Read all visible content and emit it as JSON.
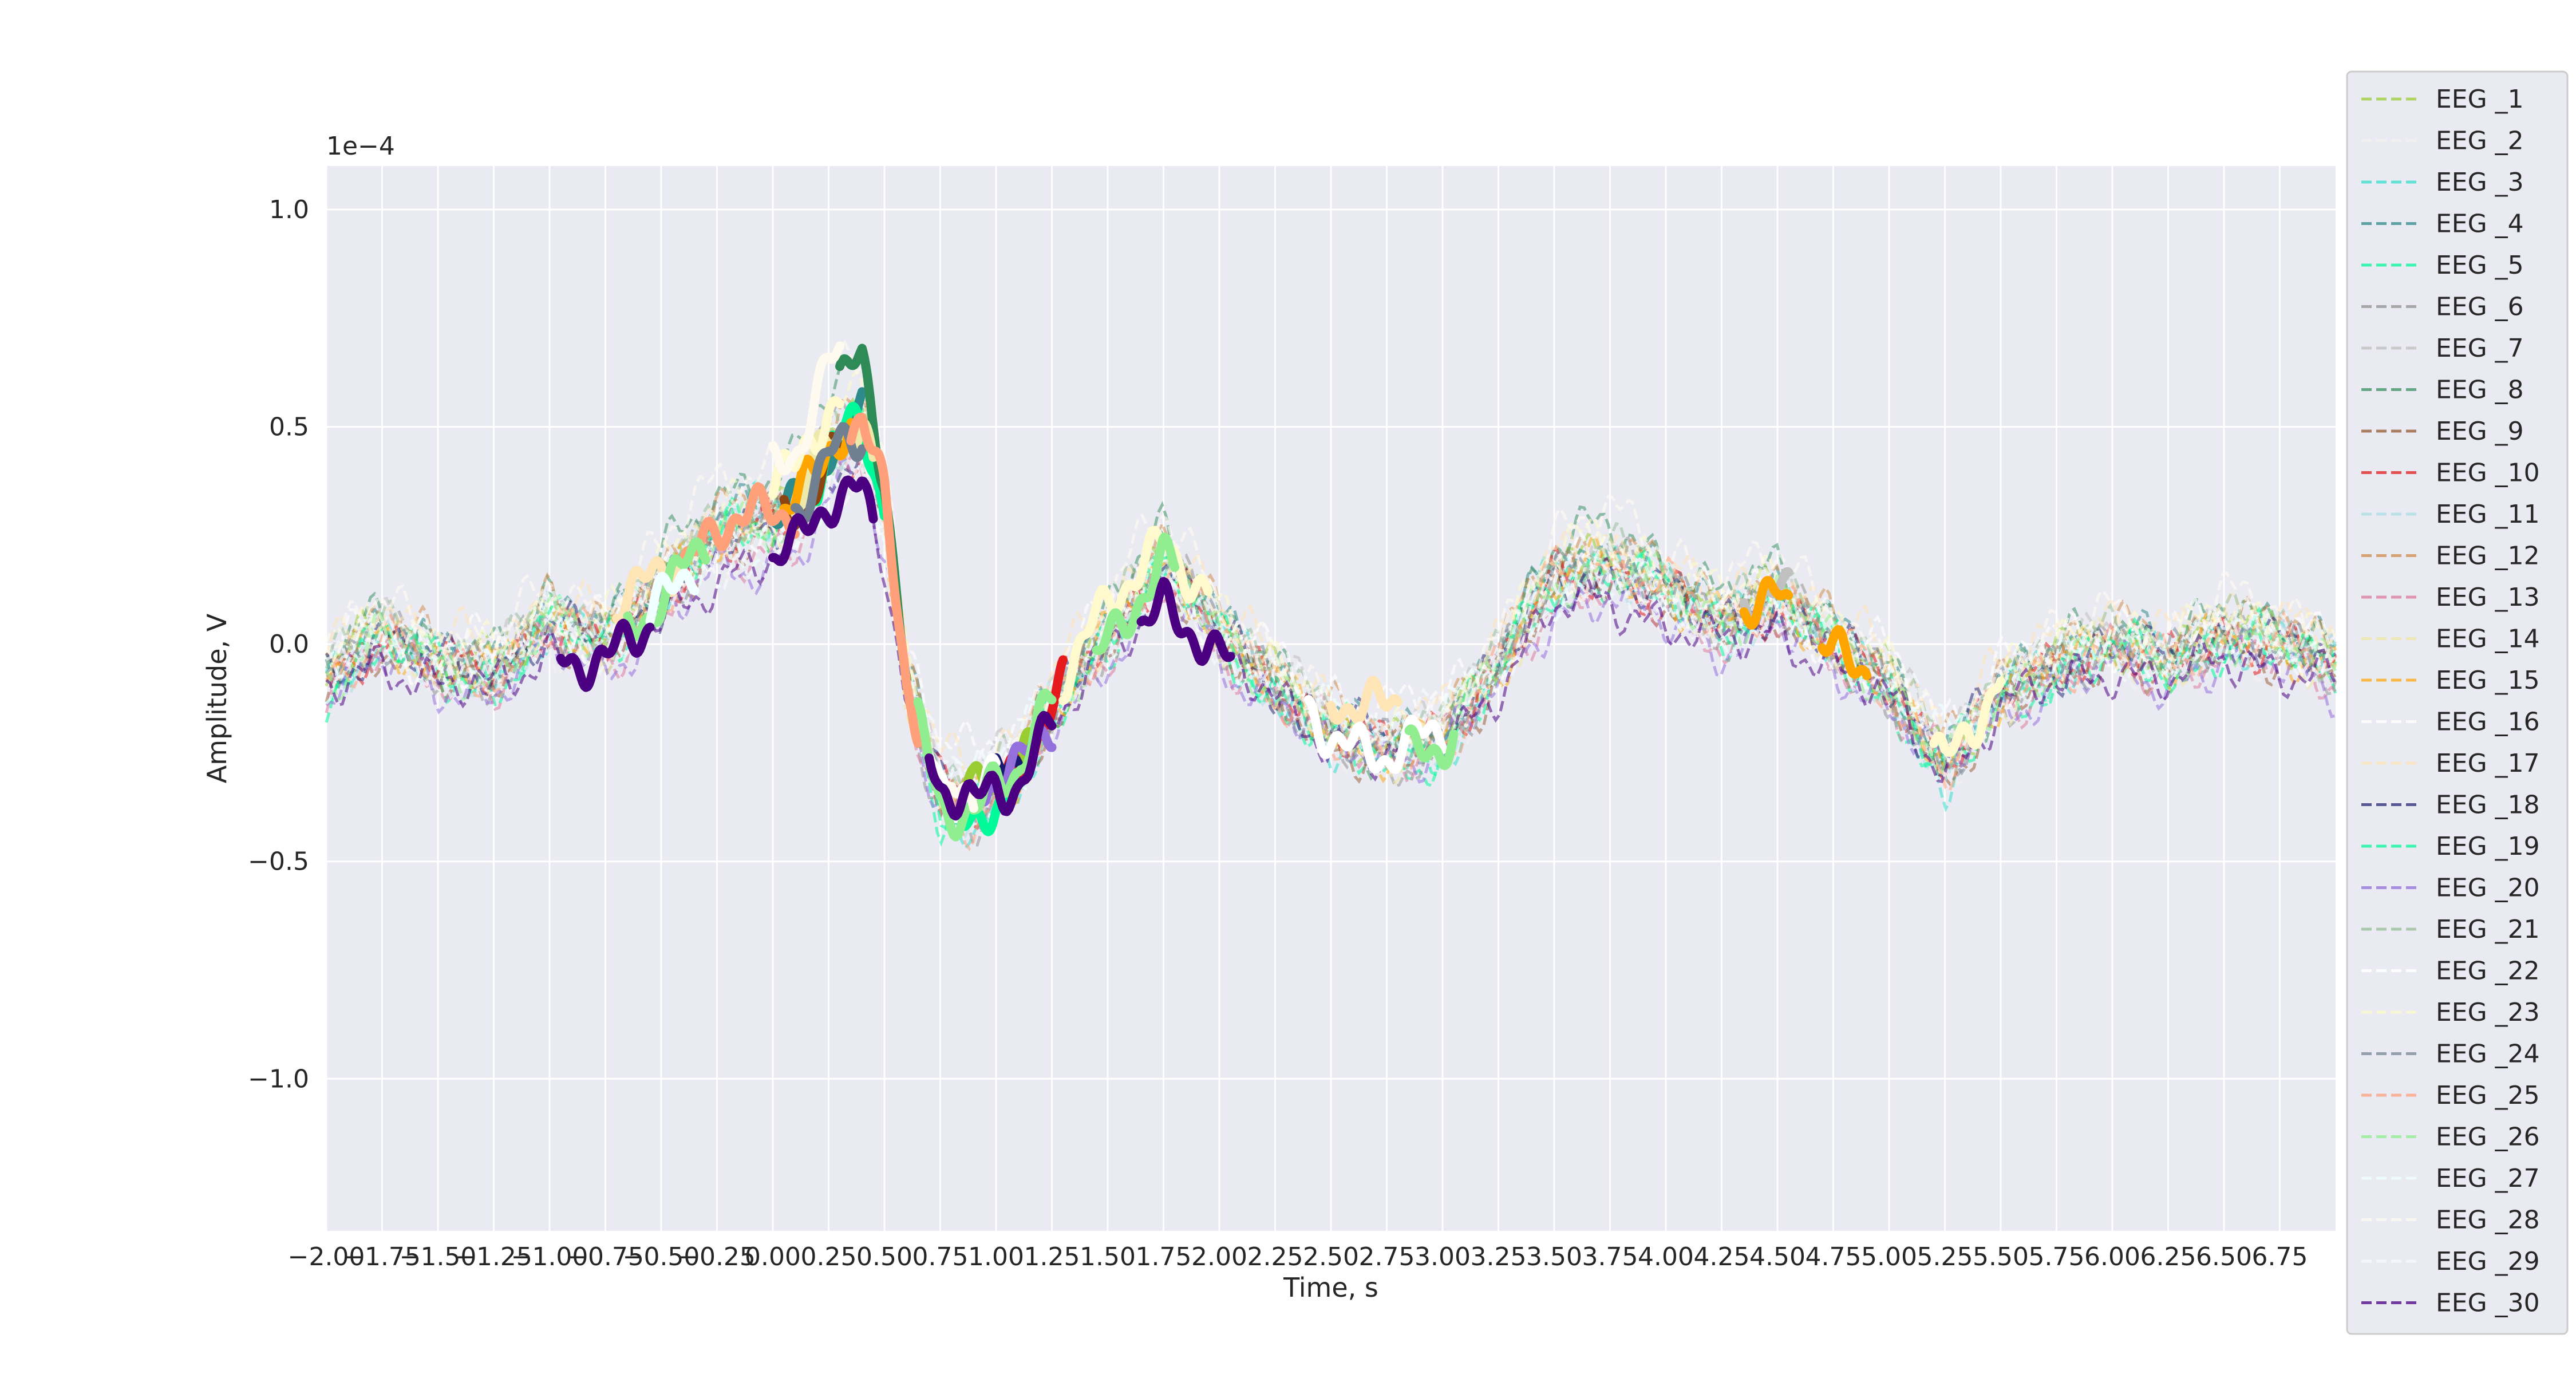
{
  "chart_data": {
    "type": "line",
    "title": "",
    "xlabel": "Time, s",
    "ylabel": "Amplitude, V",
    "y_scale_label": "1e−4",
    "xlim": [
      -2.0,
      7.0
    ],
    "ylim": [
      -1.35,
      1.1
    ],
    "x_ticks": [
      -2.0,
      -1.75,
      -1.5,
      -1.25,
      -1.0,
      -0.75,
      -0.5,
      -0.25,
      0.0,
      0.25,
      0.5,
      0.75,
      1.0,
      1.25,
      1.5,
      1.75,
      2.0,
      2.25,
      2.5,
      2.75,
      3.0,
      3.25,
      3.5,
      3.75,
      4.0,
      4.25,
      4.5,
      4.75,
      5.0,
      5.25,
      5.5,
      5.75,
      6.0,
      6.25,
      6.5,
      6.75
    ],
    "x_tick_labels": [
      "−2.00",
      "−1.75",
      "−1.50",
      "−1.25",
      "−1.00",
      "−0.75",
      "−0.50",
      "−0.25",
      "0.00",
      "0.25",
      "0.50",
      "0.75",
      "1.00",
      "1.25",
      "1.50",
      "1.75",
      "2.00",
      "2.25",
      "2.50",
      "2.75",
      "3.00",
      "3.25",
      "3.50",
      "3.75",
      "4.00",
      "4.25",
      "4.50",
      "4.75",
      "5.00",
      "5.25",
      "5.50",
      "5.75",
      "6.00",
      "6.25",
      "6.50",
      "6.75"
    ],
    "y_ticks": [
      1.0,
      0.5,
      0.0,
      -0.5,
      -1.0
    ],
    "y_tick_labels": [
      "1.0",
      "0.5",
      "0.0",
      "−0.5",
      "−1.0"
    ],
    "grid": true,
    "background": "#eaeaf2",
    "legend_position": "outside right",
    "base_waveform": {
      "x": [
        -2.0,
        -1.75,
        -1.5,
        -1.25,
        -1.0,
        -0.75,
        -0.5,
        -0.25,
        0.0,
        0.1,
        0.25,
        0.4,
        0.5,
        0.6,
        0.75,
        0.9,
        1.0,
        1.1,
        1.25,
        1.5,
        1.65,
        1.75,
        1.9,
        2.0,
        2.25,
        2.5,
        2.75,
        3.0,
        3.25,
        3.5,
        3.75,
        4.0,
        4.25,
        4.5,
        4.75,
        5.0,
        5.25,
        5.5,
        5.75,
        6.0,
        6.25,
        6.5,
        6.75,
        7.0
      ],
      "y": [
        -0.08,
        0.02,
        -0.05,
        -0.07,
        0.05,
        0.0,
        0.12,
        0.25,
        0.28,
        0.3,
        0.45,
        0.5,
        0.3,
        -0.1,
        -0.35,
        -0.38,
        -0.32,
        -0.3,
        -0.15,
        0.02,
        0.12,
        0.18,
        0.1,
        0.02,
        -0.1,
        -0.2,
        -0.25,
        -0.22,
        -0.05,
        0.15,
        0.18,
        0.12,
        0.05,
        0.1,
        0.0,
        -0.1,
        -0.28,
        -0.12,
        -0.05,
        0.0,
        -0.05,
        0.02,
        0.0,
        -0.05
      ]
    },
    "series": [
      {
        "name": "EEG _1",
        "color": "#9acd32",
        "amp": 1.0,
        "offset": 0.02,
        "opacity": 0.55,
        "highlight": [
          [
            0.85,
            1.15
          ]
        ]
      },
      {
        "name": "EEG _2",
        "color": "#f0f0f0",
        "amp": 0.9,
        "offset": -0.03,
        "opacity": 0.8,
        "highlight": []
      },
      {
        "name": "EEG _3",
        "color": "#40e0d0",
        "amp": 1.1,
        "offset": 0.0,
        "opacity": 0.6,
        "highlight": []
      },
      {
        "name": "EEG _4",
        "color": "#2e8b8b",
        "amp": 1.0,
        "offset": 0.03,
        "opacity": 0.55,
        "highlight": [
          [
            0.0,
            0.4
          ]
        ]
      },
      {
        "name": "EEG _5",
        "color": "#00fa9a",
        "amp": 1.05,
        "offset": -0.02,
        "opacity": 0.55,
        "highlight": [
          [
            0.2,
            0.5
          ],
          [
            0.8,
            1.1
          ]
        ]
      },
      {
        "name": "EEG _6",
        "color": "#8b8b8b",
        "amp": 1.1,
        "offset": 0.0,
        "opacity": 0.5,
        "highlight": []
      },
      {
        "name": "EEG _7",
        "color": "#c0c0c0",
        "amp": 0.9,
        "offset": 0.02,
        "opacity": 0.55,
        "highlight": [
          [
            4.35,
            4.55
          ]
        ]
      },
      {
        "name": "EEG _8",
        "color": "#2e8b57",
        "amp": 1.2,
        "offset": 0.05,
        "opacity": 0.5,
        "highlight": [
          [
            0.3,
            0.6
          ]
        ]
      },
      {
        "name": "EEG _9",
        "color": "#8b4513",
        "amp": 1.0,
        "offset": -0.02,
        "opacity": 0.45,
        "highlight": [
          [
            0.05,
            0.35
          ]
        ]
      },
      {
        "name": "EEG _10",
        "color": "#e41a1c",
        "amp": 0.95,
        "offset": 0.0,
        "opacity": 0.55,
        "highlight": [
          [
            1.0,
            1.3
          ]
        ]
      },
      {
        "name": "EEG _11",
        "color": "#b0e0e6",
        "amp": 1.0,
        "offset": 0.0,
        "opacity": 0.6,
        "highlight": []
      },
      {
        "name": "EEG _12",
        "color": "#cd853f",
        "amp": 1.0,
        "offset": 0.04,
        "opacity": 0.5,
        "highlight": []
      },
      {
        "name": "EEG _13",
        "color": "#db7093",
        "amp": 0.9,
        "offset": -0.03,
        "opacity": 0.5,
        "highlight": []
      },
      {
        "name": "EEG _14",
        "color": "#eee8aa",
        "amp": 1.0,
        "offset": 0.0,
        "opacity": 0.6,
        "highlight": [
          [
            0.1,
            0.45
          ]
        ]
      },
      {
        "name": "EEG _15",
        "color": "#ffa500",
        "amp": 1.0,
        "offset": 0.0,
        "opacity": 0.5,
        "highlight": [
          [
            0.05,
            0.35
          ],
          [
            4.7,
            4.9
          ],
          [
            4.35,
            4.55
          ]
        ]
      },
      {
        "name": "EEG _16",
        "color": "#fdfdfd",
        "amp": 0.8,
        "offset": 0.05,
        "opacity": 0.7,
        "highlight": []
      },
      {
        "name": "EEG _17",
        "color": "#ffe4b5",
        "amp": 0.9,
        "offset": 0.06,
        "opacity": 0.55,
        "highlight": [
          [
            2.5,
            2.8
          ],
          [
            -0.7,
            -0.4
          ]
        ]
      },
      {
        "name": "EEG _18",
        "color": "#191970",
        "amp": 0.9,
        "offset": 0.0,
        "opacity": 0.5,
        "highlight": [
          [
            1.0,
            1.1
          ]
        ]
      },
      {
        "name": "EEG _19",
        "color": "#00fa9a",
        "amp": 1.0,
        "offset": 0.0,
        "opacity": 0.55,
        "highlight": []
      },
      {
        "name": "EEG _20",
        "color": "#9370db",
        "amp": 0.85,
        "offset": -0.05,
        "opacity": 0.55,
        "highlight": [
          [
            0.95,
            1.25
          ]
        ]
      },
      {
        "name": "EEG _21",
        "color": "#8fbc8f",
        "amp": 1.0,
        "offset": 0.03,
        "opacity": 0.5,
        "highlight": []
      },
      {
        "name": "EEG _22",
        "color": "#ffffff",
        "amp": 1.0,
        "offset": 0.0,
        "opacity": 0.7,
        "highlight": [
          [
            2.4,
            3.0
          ],
          [
            0.7,
            1.0
          ]
        ]
      },
      {
        "name": "EEG _23",
        "color": "#fffacd",
        "amp": 1.1,
        "offset": 0.05,
        "opacity": 0.6,
        "highlight": [
          [
            0.0,
            0.3
          ],
          [
            1.3,
            1.95
          ],
          [
            5.2,
            5.5
          ]
        ]
      },
      {
        "name": "EEG _24",
        "color": "#708090",
        "amp": 1.0,
        "offset": 0.0,
        "opacity": 0.5,
        "highlight": [
          [
            0.1,
            0.4
          ]
        ]
      },
      {
        "name": "EEG _25",
        "color": "#ffa07a",
        "amp": 1.05,
        "offset": 0.0,
        "opacity": 0.55,
        "highlight": [
          [
            -0.4,
            0.1
          ],
          [
            0.35,
            0.65
          ]
        ]
      },
      {
        "name": "EEG _26",
        "color": "#90ee90",
        "amp": 1.0,
        "offset": 0.0,
        "opacity": 0.55,
        "highlight": [
          [
            -0.65,
            -0.3
          ],
          [
            0.65,
            1.25
          ],
          [
            1.45,
            1.8
          ],
          [
            2.85,
            3.05
          ]
        ]
      },
      {
        "name": "EEG _27",
        "color": "#f0ffff",
        "amp": 0.8,
        "offset": 0.0,
        "opacity": 0.7,
        "highlight": [
          [
            -0.55,
            -0.35
          ]
        ]
      },
      {
        "name": "EEG _28",
        "color": "#fffaf0",
        "amp": 1.2,
        "offset": 0.08,
        "opacity": 0.6,
        "highlight": [
          [
            0.0,
            0.3
          ],
          [
            0.8,
            0.9
          ]
        ]
      },
      {
        "name": "EEG _29",
        "color": "#f8f8ff",
        "amp": 0.8,
        "offset": 0.0,
        "opacity": 0.7,
        "highlight": []
      },
      {
        "name": "EEG _30",
        "color": "#4b0082",
        "amp": 0.85,
        "offset": -0.05,
        "opacity": 0.55,
        "highlight": [
          [
            -0.95,
            -0.55
          ],
          [
            0.0,
            0.45
          ],
          [
            0.7,
            1.25
          ],
          [
            1.65,
            2.05
          ]
        ]
      }
    ]
  }
}
